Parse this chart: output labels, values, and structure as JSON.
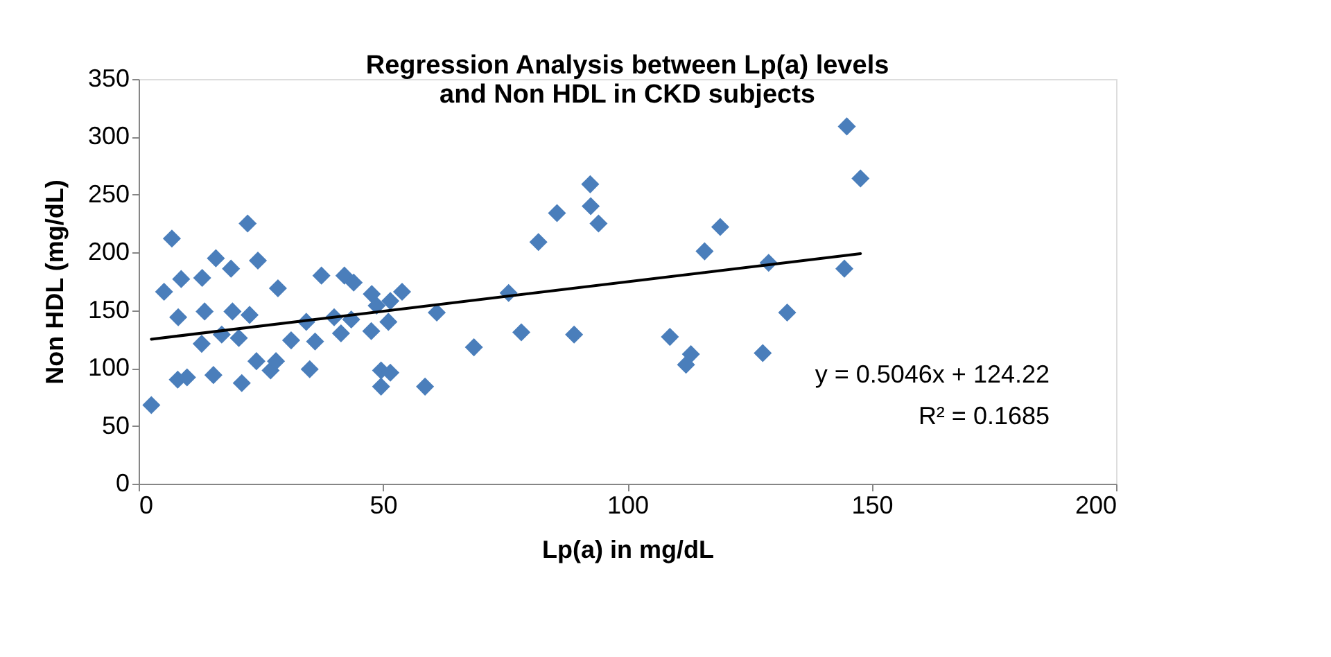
{
  "chart_data": {
    "type": "scatter",
    "title": "Regression Analysis between Lp(a) levels and Non HDL in CKD subjects",
    "xlabel": "Lp(a)   in mg/dL",
    "ylabel": "Non HDL  (mg/dL)",
    "xlim": [
      0,
      200
    ],
    "xticks": [
      0,
      50,
      100,
      150,
      200
    ],
    "ylim": [
      0,
      350
    ],
    "yticks": [
      0,
      50,
      100,
      150,
      200,
      250,
      300,
      350
    ],
    "grid": false,
    "annotations": [
      "y = 0.5046x + 124.22",
      "R² = 0.1685"
    ],
    "series": [
      {
        "marker": "diamond",
        "color": "#4a7ebb",
        "x": [
          6.8,
          22.3,
          5.2,
          8.7,
          13,
          15.8,
          18.9,
          24.4,
          28.5,
          8.1,
          13.5,
          19.2,
          22.7,
          12.9,
          17,
          20.5,
          8,
          9.9,
          15.3,
          21.1,
          2.6,
          24.1,
          27,
          28.1,
          31.2,
          34.3,
          35,
          36.1,
          37.4,
          40,
          42.1,
          44,
          41.4,
          43.5,
          47.7,
          47.6,
          51.1,
          49.6,
          49.6,
          51.5,
          53.9,
          51.5,
          58.6,
          61,
          48.7,
          92.4,
          85.6,
          92.5,
          94.1,
          81.8,
          75.7,
          68.6,
          78.3,
          89.1,
          108.7,
          113,
          112,
          115.8,
          119,
          144.9,
          147.7,
          128.9,
          144.4,
          132.7,
          127.7
        ],
        "values": [
          212,
          225,
          166,
          177,
          178,
          195,
          186,
          193,
          169,
          144,
          149,
          149,
          146,
          121,
          129,
          126,
          90,
          92,
          94,
          87,
          68,
          106,
          98,
          106,
          124,
          140,
          99,
          123,
          180,
          144,
          180,
          174,
          130,
          142,
          164,
          132,
          140,
          98,
          84,
          96,
          166,
          158,
          84,
          148,
          154,
          259,
          234,
          240,
          225,
          209,
          165,
          118,
          131,
          129,
          127,
          112,
          103,
          201,
          222,
          309,
          264,
          191,
          186,
          148,
          113
        ]
      },
      {
        "type": "line",
        "color": "#000000",
        "x": [
          2.6,
          147.7
        ],
        "values": [
          125,
          199
        ]
      }
    ]
  }
}
